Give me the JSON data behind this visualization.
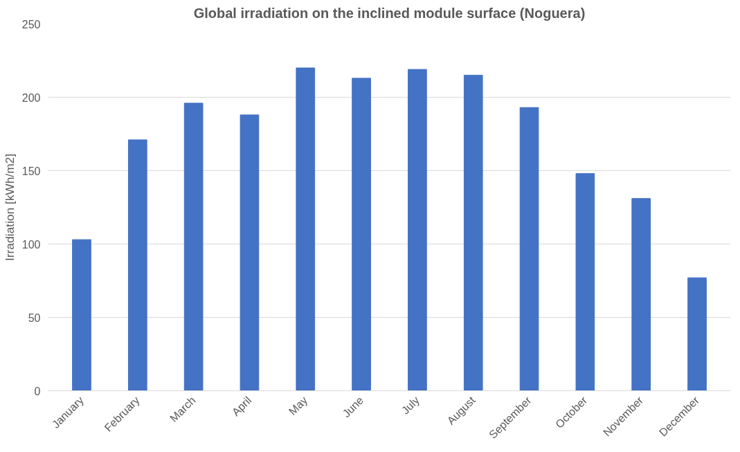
{
  "chart_data": {
    "type": "bar",
    "title": "Global irradiation on the inclined module surface (Noguera)",
    "ylabel": "Irradiation [kWh/m2]",
    "categories": [
      "January",
      "February",
      "March",
      "April",
      "May",
      "June",
      "July",
      "August",
      "September",
      "October",
      "November",
      "December"
    ],
    "values": [
      103,
      171,
      196,
      188,
      220,
      213,
      219,
      215,
      193,
      148,
      131,
      77
    ],
    "color": "#4472c4",
    "ylim": [
      0,
      250
    ],
    "yticks": [
      0,
      50,
      100,
      150,
      200,
      250
    ],
    "grid": "y"
  }
}
